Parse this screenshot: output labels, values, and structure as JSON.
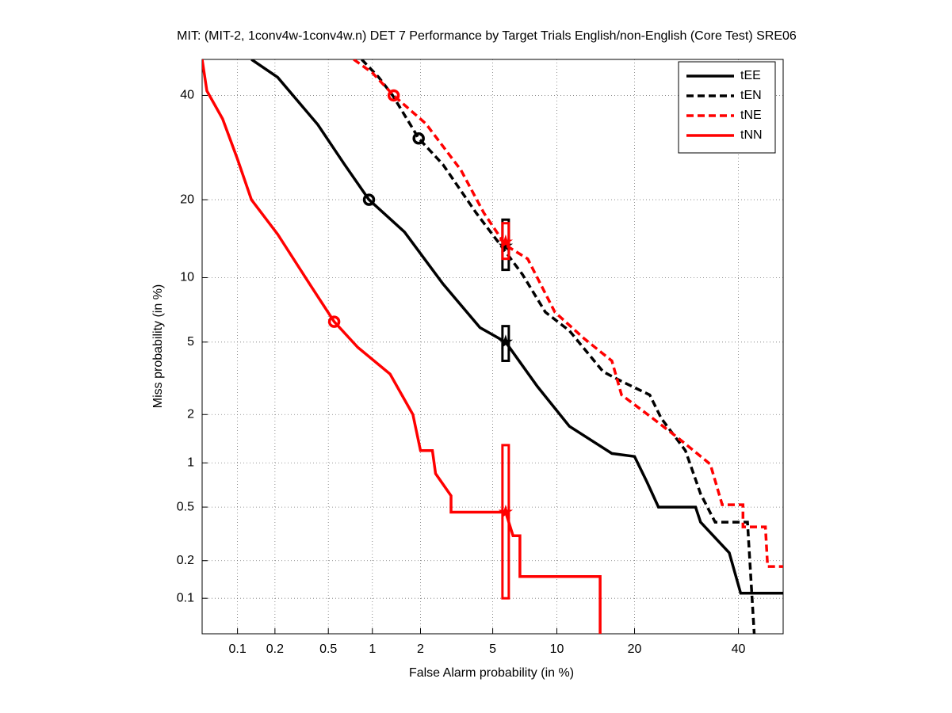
{
  "chart_data": {
    "type": "line",
    "title": "MIT: (MIT-2, 1conv4w-1conv4w.n) DET 7 Performance by Target Trials English/non-English (Core Test) SRE06",
    "x_label": "False Alarm probability (in %)",
    "y_label": "Miss probability (in %)",
    "scale": "probit",
    "grid": true,
    "legend": "upper right",
    "xlim": [
      0.05,
      50
    ],
    "ylim": [
      0.05,
      48
    ],
    "xticks": [
      0.1,
      0.2,
      0.5,
      1,
      2,
      5,
      10,
      20,
      40
    ],
    "yticks": [
      0.1,
      0.2,
      0.5,
      1,
      2,
      5,
      10,
      20,
      40
    ],
    "series": [
      {
        "name": "tEE",
        "color": "#000000",
        "dashed": false,
        "x": [
          0.13,
          0.21,
          0.42,
          0.65,
          0.95,
          1.6,
          2.7,
          4.3,
          5.8,
          8.2,
          11.3,
          16.6,
          20,
          22,
          24,
          31,
          32,
          38,
          40.5,
          50
        ],
        "values": [
          48,
          44,
          33.8,
          26,
          20,
          15.3,
          9.4,
          5.9,
          5,
          2.9,
          1.7,
          1.15,
          1.1,
          0.75,
          0.5,
          0.5,
          0.39,
          0.23,
          0.11,
          0.11
        ],
        "min_point": [
          0.95,
          20
        ],
        "act_point": [
          5.8,
          5
        ],
        "act_range": [
          4,
          6
        ]
      },
      {
        "name": "tEN",
        "color": "#000000",
        "dashed": true,
        "x": [
          0.85,
          1.1,
          1.35,
          1.95,
          2.7,
          4.1,
          5.8,
          7,
          8.9,
          11.3,
          15.4,
          18,
          22.5,
          24.5,
          29,
          32,
          35,
          42,
          43.5
        ],
        "values": [
          48,
          44,
          40,
          31,
          26,
          18,
          12.8,
          10.3,
          7,
          5.7,
          3.5,
          3.1,
          2.6,
          1.9,
          1.2,
          0.62,
          0.39,
          0.39,
          0.05
        ],
        "min_point": [
          1.95,
          31
        ],
        "act_point": [
          5.8,
          13.5
        ],
        "act_range": [
          10.8,
          17
        ]
      },
      {
        "name": "tNE",
        "color": "#ff0000",
        "dashed": true,
        "x": [
          0.75,
          1.0,
          1.37,
          2.15,
          3.4,
          4.5,
          5.8,
          7.4,
          9.8,
          13,
          16.6,
          18,
          23,
          27.5,
          34,
          36.5,
          41,
          41,
          46,
          46.5,
          50
        ],
        "values": [
          48,
          45,
          40,
          34,
          25,
          18,
          13.6,
          12,
          7,
          5.2,
          4,
          2.6,
          1.9,
          1.45,
          0.98,
          0.52,
          0.52,
          0.36,
          0.36,
          0.18,
          0.18
        ],
        "min_point": [
          1.37,
          40
        ],
        "act_point": [
          5.8,
          14
        ],
        "act_range": [
          12,
          16.5
        ]
      },
      {
        "name": "tNN",
        "color": "#ff0000",
        "dashed": false,
        "x": [
          0.05,
          0.055,
          0.075,
          0.1,
          0.13,
          0.21,
          0.37,
          0.55,
          0.8,
          1.3,
          1.8,
          2,
          2.35,
          2.45,
          3,
          3,
          5.8,
          6.3,
          6.8,
          6.8,
          15,
          15
        ],
        "values": [
          48,
          41,
          35,
          27,
          20,
          15,
          9.3,
          6.3,
          4.7,
          3.4,
          2,
          1.2,
          1.2,
          0.85,
          0.6,
          0.46,
          0.46,
          0.31,
          0.31,
          0.15,
          0.15,
          0.05
        ],
        "min_point": [
          0.55,
          6.3
        ],
        "act_point": [
          5.8,
          0.46
        ],
        "act_range": [
          0.1,
          1.3
        ]
      }
    ]
  }
}
